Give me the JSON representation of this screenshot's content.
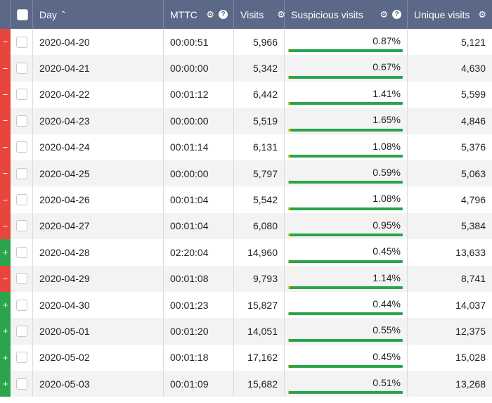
{
  "header": {
    "day": "Day",
    "mttc": "MTTC",
    "visits": "Visits",
    "suspicious": "Suspicious visits",
    "unique": "Unique visits",
    "sort_icon": "chevron-up-icon",
    "settings_icon": "gear-icon",
    "help_icon": "help-icon"
  },
  "colors": {
    "header_bg": "#5b6887",
    "expand_minus": "#e8453c",
    "expand_plus": "#2aa54c",
    "bar_ok": "#2aa54c",
    "bar_warn": "#f5c400"
  },
  "rows": [
    {
      "expand": "−",
      "expand_state": "minus",
      "day": "2020-04-20",
      "mttc": "00:00:51",
      "visits": "5,966",
      "suspicious": "0.87%",
      "suspicious_share": 0.0087,
      "unique": "5,121"
    },
    {
      "expand": "−",
      "expand_state": "minus",
      "day": "2020-04-21",
      "mttc": "00:00:00",
      "visits": "5,342",
      "suspicious": "0.67%",
      "suspicious_share": 0.0067,
      "unique": "4,630"
    },
    {
      "expand": "−",
      "expand_state": "minus",
      "day": "2020-04-22",
      "mttc": "00:01:12",
      "visits": "6,442",
      "suspicious": "1.41%",
      "suspicious_share": 0.0141,
      "unique": "5,599"
    },
    {
      "expand": "−",
      "expand_state": "minus",
      "day": "2020-04-23",
      "mttc": "00:00:00",
      "visits": "5,519",
      "suspicious": "1.65%",
      "suspicious_share": 0.0165,
      "unique": "4,846"
    },
    {
      "expand": "−",
      "expand_state": "minus",
      "day": "2020-04-24",
      "mttc": "00:01:14",
      "visits": "6,131",
      "suspicious": "1.08%",
      "suspicious_share": 0.0108,
      "unique": "5,376"
    },
    {
      "expand": "−",
      "expand_state": "minus",
      "day": "2020-04-25",
      "mttc": "00:00:00",
      "visits": "5,797",
      "suspicious": "0.59%",
      "suspicious_share": 0.0059,
      "unique": "5,063"
    },
    {
      "expand": "−",
      "expand_state": "minus",
      "day": "2020-04-26",
      "mttc": "00:01:04",
      "visits": "5,542",
      "suspicious": "1.08%",
      "suspicious_share": 0.0108,
      "unique": "4,796"
    },
    {
      "expand": "−",
      "expand_state": "minus",
      "day": "2020-04-27",
      "mttc": "00:01:04",
      "visits": "6,080",
      "suspicious": "0.95%",
      "suspicious_share": 0.0095,
      "unique": "5,384"
    },
    {
      "expand": "+",
      "expand_state": "plus",
      "day": "2020-04-28",
      "mttc": "02:20:04",
      "visits": "14,960",
      "suspicious": "0.45%",
      "suspicious_share": 0.0045,
      "unique": "13,633"
    },
    {
      "expand": "−",
      "expand_state": "minus",
      "day": "2020-04-29",
      "mttc": "00:01:08",
      "visits": "9,793",
      "suspicious": "1.14%",
      "suspicious_share": 0.0114,
      "unique": "8,741"
    },
    {
      "expand": "+",
      "expand_state": "plus",
      "day": "2020-04-30",
      "mttc": "00:01:23",
      "visits": "15,827",
      "suspicious": "0.44%",
      "suspicious_share": 0.0044,
      "unique": "14,037"
    },
    {
      "expand": "+",
      "expand_state": "plus",
      "day": "2020-05-01",
      "mttc": "00:01:20",
      "visits": "14,051",
      "suspicious": "0.55%",
      "suspicious_share": 0.0055,
      "unique": "12,375"
    },
    {
      "expand": "+",
      "expand_state": "plus",
      "day": "2020-05-02",
      "mttc": "00:01:18",
      "visits": "17,162",
      "suspicious": "0.45%",
      "suspicious_share": 0.0045,
      "unique": "15,028"
    },
    {
      "expand": "+",
      "expand_state": "plus",
      "day": "2020-05-03",
      "mttc": "00:01:09",
      "visits": "15,682",
      "suspicious": "0.51%",
      "suspicious_share": 0.0051,
      "unique": "13,268"
    }
  ]
}
